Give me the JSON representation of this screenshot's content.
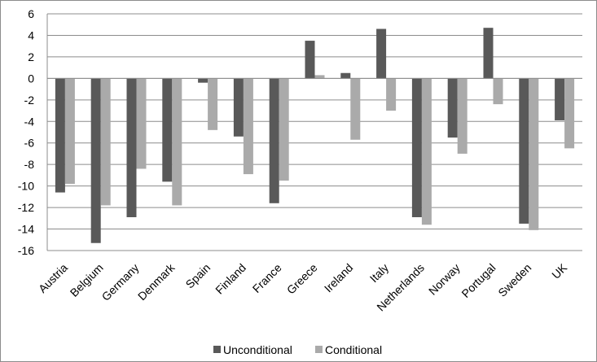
{
  "chart_data": {
    "type": "bar",
    "categories": [
      "Austria",
      "Belgium",
      "Germany",
      "Denmark",
      "Spain",
      "Finland",
      "France",
      "Greece",
      "Ireland",
      "Italy",
      "Netherlands",
      "Norway",
      "Portugal",
      "Sweden",
      "UK"
    ],
    "series": [
      {
        "name": "Unconditional",
        "color": "#595959",
        "values": [
          -10.6,
          -15.3,
          -12.9,
          -9.6,
          -0.4,
          -5.4,
          -11.6,
          3.5,
          0.5,
          4.6,
          -12.9,
          -5.5,
          4.7,
          -13.5,
          -3.9
        ]
      },
      {
        "name": "Conditional",
        "color": "#aaaaaa",
        "values": [
          -9.8,
          -11.8,
          -8.4,
          -11.8,
          -4.8,
          -8.9,
          -9.5,
          0.3,
          -5.7,
          -3.0,
          -13.6,
          -7.0,
          -2.4,
          -14.1,
          -6.5
        ]
      }
    ],
    "title": "",
    "xlabel": "",
    "ylabel": "",
    "ylim": [
      -16,
      6
    ],
    "yticks": [
      "6",
      "4",
      "2",
      "0",
      "-2",
      "-4",
      "-6",
      "-8",
      "-10",
      "-12",
      "-14",
      "-16"
    ],
    "grid": true,
    "legend_position": "bottom"
  }
}
